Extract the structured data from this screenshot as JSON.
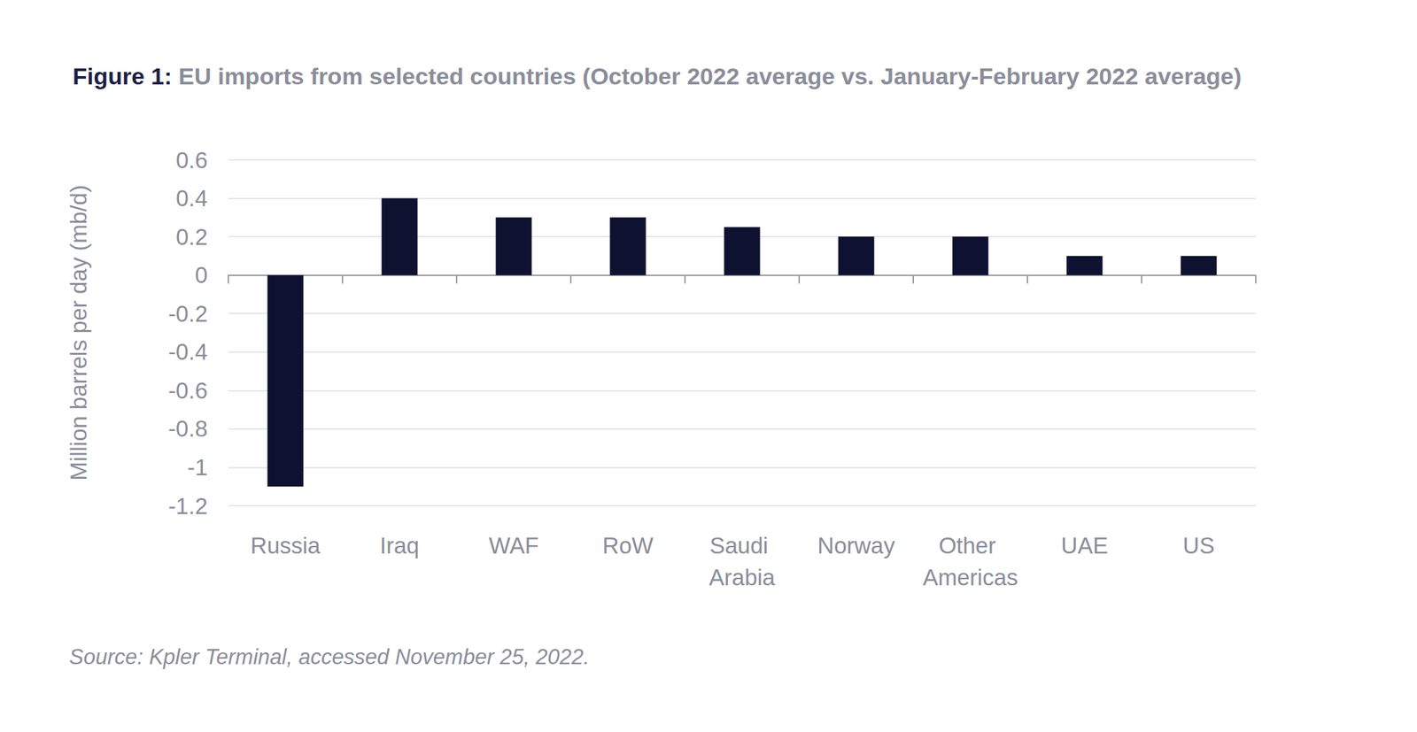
{
  "chart_data": {
    "type": "bar",
    "title": "Figure 1: EU imports from selected countries (October 2022 average vs. January-February 2022 average)",
    "y_label": "Million barrels per day (mb/d)",
    "source": "Source: Kpler Terminal, accessed November 25, 2022.",
    "categories": [
      "Russia",
      "Iraq",
      "WAF",
      "RoW",
      "Saudi Arabia",
      "Norway",
      "Other Americas",
      "UAE",
      "US"
    ],
    "values": [
      -1.1,
      0.4,
      0.3,
      0.3,
      0.25,
      0.2,
      0.2,
      0.1,
      0.1
    ],
    "color": "#0e1130",
    "ylim": [
      -1.2,
      0.6
    ],
    "yticks": [
      -1.2,
      -1,
      -0.8,
      -0.6,
      -0.4,
      -0.2,
      0,
      0.2,
      0.4,
      0.6
    ],
    "grid": true
  }
}
